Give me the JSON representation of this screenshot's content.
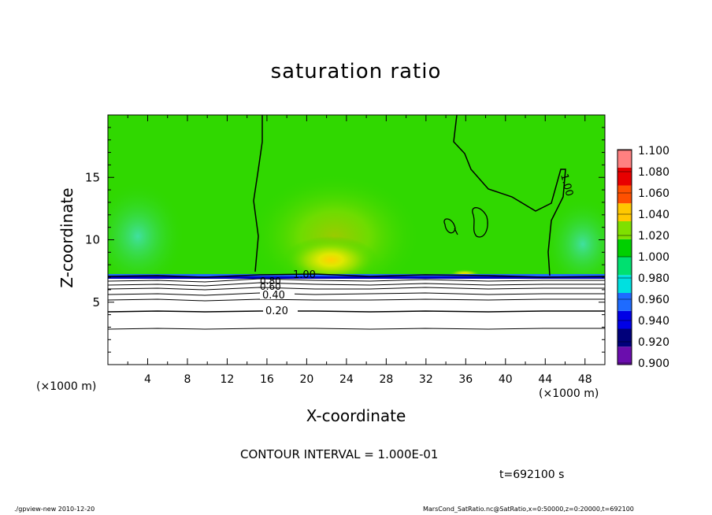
{
  "chart_data": {
    "type": "heatmap",
    "title": "saturation ratio",
    "xlabel": "X-coordinate",
    "ylabel": "Z-coordinate",
    "x_unit_left": "(×1000 m)",
    "x_unit_right": "(×1000 m)",
    "xlim": [
      0,
      50
    ],
    "ylim": [
      0,
      20
    ],
    "x_ticks": [
      "4",
      "8",
      "12",
      "16",
      "20",
      "24",
      "28",
      "32",
      "36",
      "40",
      "44",
      "48"
    ],
    "y_ticks": [
      "5",
      "10",
      "15"
    ],
    "colorbar": {
      "levels": [
        "0.900",
        "0.920",
        "0.940",
        "0.960",
        "0.980",
        "1.000",
        "1.020",
        "1.040",
        "1.060",
        "1.080",
        "1.100"
      ],
      "colors": [
        "#6a0dad",
        "#00007a",
        "#0000e6",
        "#1e6bff",
        "#00e0e0",
        "#00e070",
        "#00d000",
        "#7fe000",
        "#ffc800",
        "#ff5000",
        "#e80000",
        "#ff8080"
      ]
    },
    "contour_labels": [
      "1.00",
      "1.00",
      "0.80",
      "0.60",
      "0.40",
      "0.20"
    ],
    "contour_interval_text": "CONTOUR INTERVAL = 1.000E-01",
    "time_text": "t=692100 s"
  },
  "footer": {
    "left": "./gpview-new   2010-12-20",
    "right": "MarsCond_SatRatio.nc@SatRatio,x=0:50000,z=0:20000,t=692100"
  }
}
